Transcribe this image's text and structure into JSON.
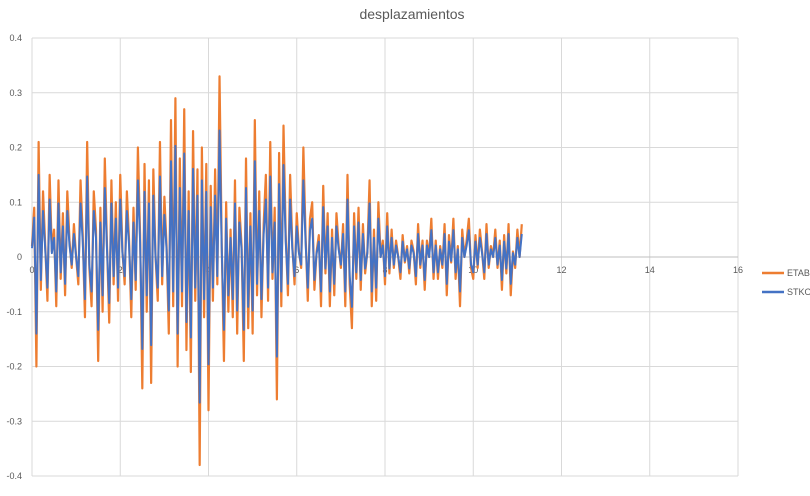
{
  "chart_data": {
    "type": "line",
    "title": "desplazamientos",
    "xlabel": "",
    "ylabel": "",
    "xlim": [
      0,
      16
    ],
    "ylim": [
      -0.4,
      0.4
    ],
    "x_ticks": [
      "0",
      "2",
      "4",
      "6",
      "8",
      "10",
      "12",
      "14",
      "16"
    ],
    "y_ticks": [
      "0.4",
      "0.3",
      "0.2",
      "0.1",
      "0",
      "-0.1",
      "-0.2",
      "-0.3",
      "-0.4"
    ],
    "grid": true,
    "legend_position": "right",
    "x_step": 0.05,
    "series": [
      {
        "name": "ETABS",
        "color": "#ED7D31",
        "values": [
          0.02,
          0.09,
          -0.2,
          0.21,
          -0.06,
          0.12,
          0.02,
          -0.08,
          0.15,
          0.01,
          0.05,
          -0.09,
          0.14,
          -0.04,
          0.08,
          -0.07,
          0.12,
          0.03,
          -0.02,
          0.06,
          0.0,
          -0.05,
          0.14,
          0.04,
          -0.11,
          0.21,
          -0.02,
          -0.09,
          0.12,
          0.05,
          -0.19,
          0.09,
          -0.1,
          0.18,
          0.02,
          -0.12,
          0.14,
          -0.05,
          0.1,
          -0.08,
          0.15,
          0.01,
          -0.05,
          0.12,
          0.03,
          -0.11,
          0.09,
          -0.06,
          0.2,
          0.04,
          -0.24,
          0.17,
          -0.1,
          0.14,
          -0.23,
          0.16,
          0.0,
          -0.08,
          0.21,
          -0.05,
          0.11,
          0.02,
          -0.14,
          0.25,
          -0.09,
          0.29,
          -0.2,
          0.18,
          -0.09,
          0.27,
          -0.17,
          0.12,
          -0.21,
          0.23,
          -0.08,
          0.16,
          -0.38,
          0.2,
          -0.11,
          0.17,
          -0.28,
          0.13,
          -0.08,
          0.16,
          -0.05,
          0.33,
          0.02,
          -0.19,
          0.1,
          -0.1,
          0.05,
          -0.11,
          0.14,
          -0.14,
          0.09,
          0.02,
          -0.19,
          0.18,
          -0.13,
          0.08,
          -0.14,
          0.25,
          -0.07,
          0.12,
          -0.11,
          0.06,
          0.15,
          -0.08,
          0.21,
          -0.04,
          0.09,
          -0.26,
          0.19,
          -0.09,
          0.24,
          0.04,
          -0.07,
          0.15,
          0.02,
          -0.05,
          0.08,
          0.01,
          -0.02,
          0.2,
          0.04,
          -0.08,
          0.07,
          0.1,
          -0.06,
          0.01,
          0.04,
          -0.09,
          0.13,
          -0.03,
          0.08,
          -0.09,
          0.05,
          -0.07,
          0.08,
          0.02,
          -0.02,
          0.06,
          -0.09,
          0.15,
          -0.05,
          -0.13,
          0.08,
          -0.04,
          0.09,
          -0.06,
          0.06,
          -0.03,
          0.01,
          0.14,
          -0.09,
          0.05,
          -0.08,
          0.1,
          0.0,
          0.03,
          -0.05,
          0.08,
          -0.03,
          0.05,
          -0.02,
          0.03,
          0.0,
          -0.04,
          0.04,
          -0.01,
          0.02,
          -0.03,
          0.03,
          0.01,
          -0.05,
          0.06,
          -0.02,
          0.03,
          -0.06,
          0.03,
          0.0,
          0.07,
          -0.04,
          0.03,
          -0.04,
          0.02,
          -0.02,
          0.06,
          -0.07,
          0.04,
          -0.01,
          0.07,
          -0.04,
          0.02,
          -0.09,
          0.05,
          0.0,
          0.03,
          0.07,
          -0.02,
          -0.04,
          0.04,
          -0.02,
          0.05,
          0.01,
          -0.04,
          0.06,
          -0.02,
          0.02,
          0.0,
          0.05,
          -0.02,
          0.03,
          -0.06,
          0.04,
          -0.03,
          0.06,
          -0.07,
          0.01,
          -0.02,
          0.05,
          0.0,
          0.06
        ]
      },
      {
        "name": "STKO",
        "color": "#4472C4",
        "values": [
          0.016,
          0.072,
          -0.14,
          0.15,
          -0.042,
          0.084,
          0.014,
          -0.056,
          0.105,
          0.007,
          0.035,
          -0.063,
          0.098,
          -0.028,
          0.056,
          -0.049,
          0.084,
          0.021,
          -0.014,
          0.042,
          0.0,
          -0.035,
          0.098,
          0.028,
          -0.077,
          0.147,
          -0.014,
          -0.063,
          0.084,
          0.035,
          -0.133,
          0.063,
          -0.07,
          0.126,
          0.014,
          -0.084,
          0.098,
          -0.035,
          0.07,
          -0.056,
          0.105,
          0.007,
          -0.035,
          0.084,
          0.021,
          -0.077,
          0.063,
          -0.042,
          0.14,
          0.028,
          -0.168,
          0.119,
          -0.07,
          0.098,
          -0.161,
          0.112,
          0.0,
          -0.056,
          0.147,
          -0.035,
          0.077,
          0.014,
          -0.098,
          0.175,
          -0.063,
          0.203,
          -0.14,
          0.126,
          -0.063,
          0.189,
          -0.119,
          0.084,
          -0.147,
          0.161,
          -0.056,
          0.112,
          -0.266,
          0.14,
          -0.077,
          0.119,
          -0.196,
          0.091,
          -0.056,
          0.112,
          -0.035,
          0.231,
          0.014,
          -0.133,
          0.07,
          -0.07,
          0.035,
          -0.077,
          0.098,
          -0.098,
          0.063,
          0.014,
          -0.133,
          0.126,
          -0.091,
          0.056,
          -0.098,
          0.175,
          -0.049,
          0.084,
          -0.077,
          0.042,
          0.105,
          -0.056,
          0.147,
          -0.028,
          0.063,
          -0.182,
          0.133,
          -0.063,
          0.168,
          0.028,
          -0.049,
          0.105,
          0.014,
          -0.035,
          0.056,
          0.007,
          -0.014,
          0.14,
          0.028,
          -0.056,
          0.049,
          0.07,
          -0.042,
          0.007,
          0.028,
          -0.063,
          0.091,
          -0.021,
          0.056,
          -0.063,
          0.035,
          -0.049,
          0.056,
          0.014,
          -0.014,
          0.042,
          -0.063,
          0.105,
          -0.035,
          -0.091,
          0.056,
          -0.028,
          0.063,
          -0.042,
          0.042,
          -0.021,
          0.007,
          0.098,
          -0.063,
          0.035,
          -0.056,
          0.07,
          0.0,
          0.021,
          -0.035,
          0.056,
          -0.021,
          0.035,
          -0.014,
          0.021,
          0.0,
          -0.028,
          0.028,
          -0.007,
          0.014,
          -0.021,
          0.021,
          0.007,
          -0.035,
          0.042,
          -0.014,
          0.021,
          -0.042,
          0.021,
          0.0,
          0.049,
          -0.028,
          0.021,
          -0.028,
          0.014,
          -0.014,
          0.042,
          -0.049,
          0.028,
          -0.007,
          0.049,
          -0.028,
          0.014,
          -0.063,
          0.035,
          0.0,
          0.021,
          0.049,
          -0.014,
          -0.028,
          0.028,
          -0.014,
          0.035,
          0.007,
          -0.028,
          0.042,
          -0.014,
          0.014,
          0.0,
          0.035,
          -0.014,
          0.021,
          -0.042,
          0.028,
          -0.021,
          0.042,
          -0.049,
          0.007,
          -0.014,
          0.035,
          0.0,
          0.042
        ]
      }
    ]
  }
}
